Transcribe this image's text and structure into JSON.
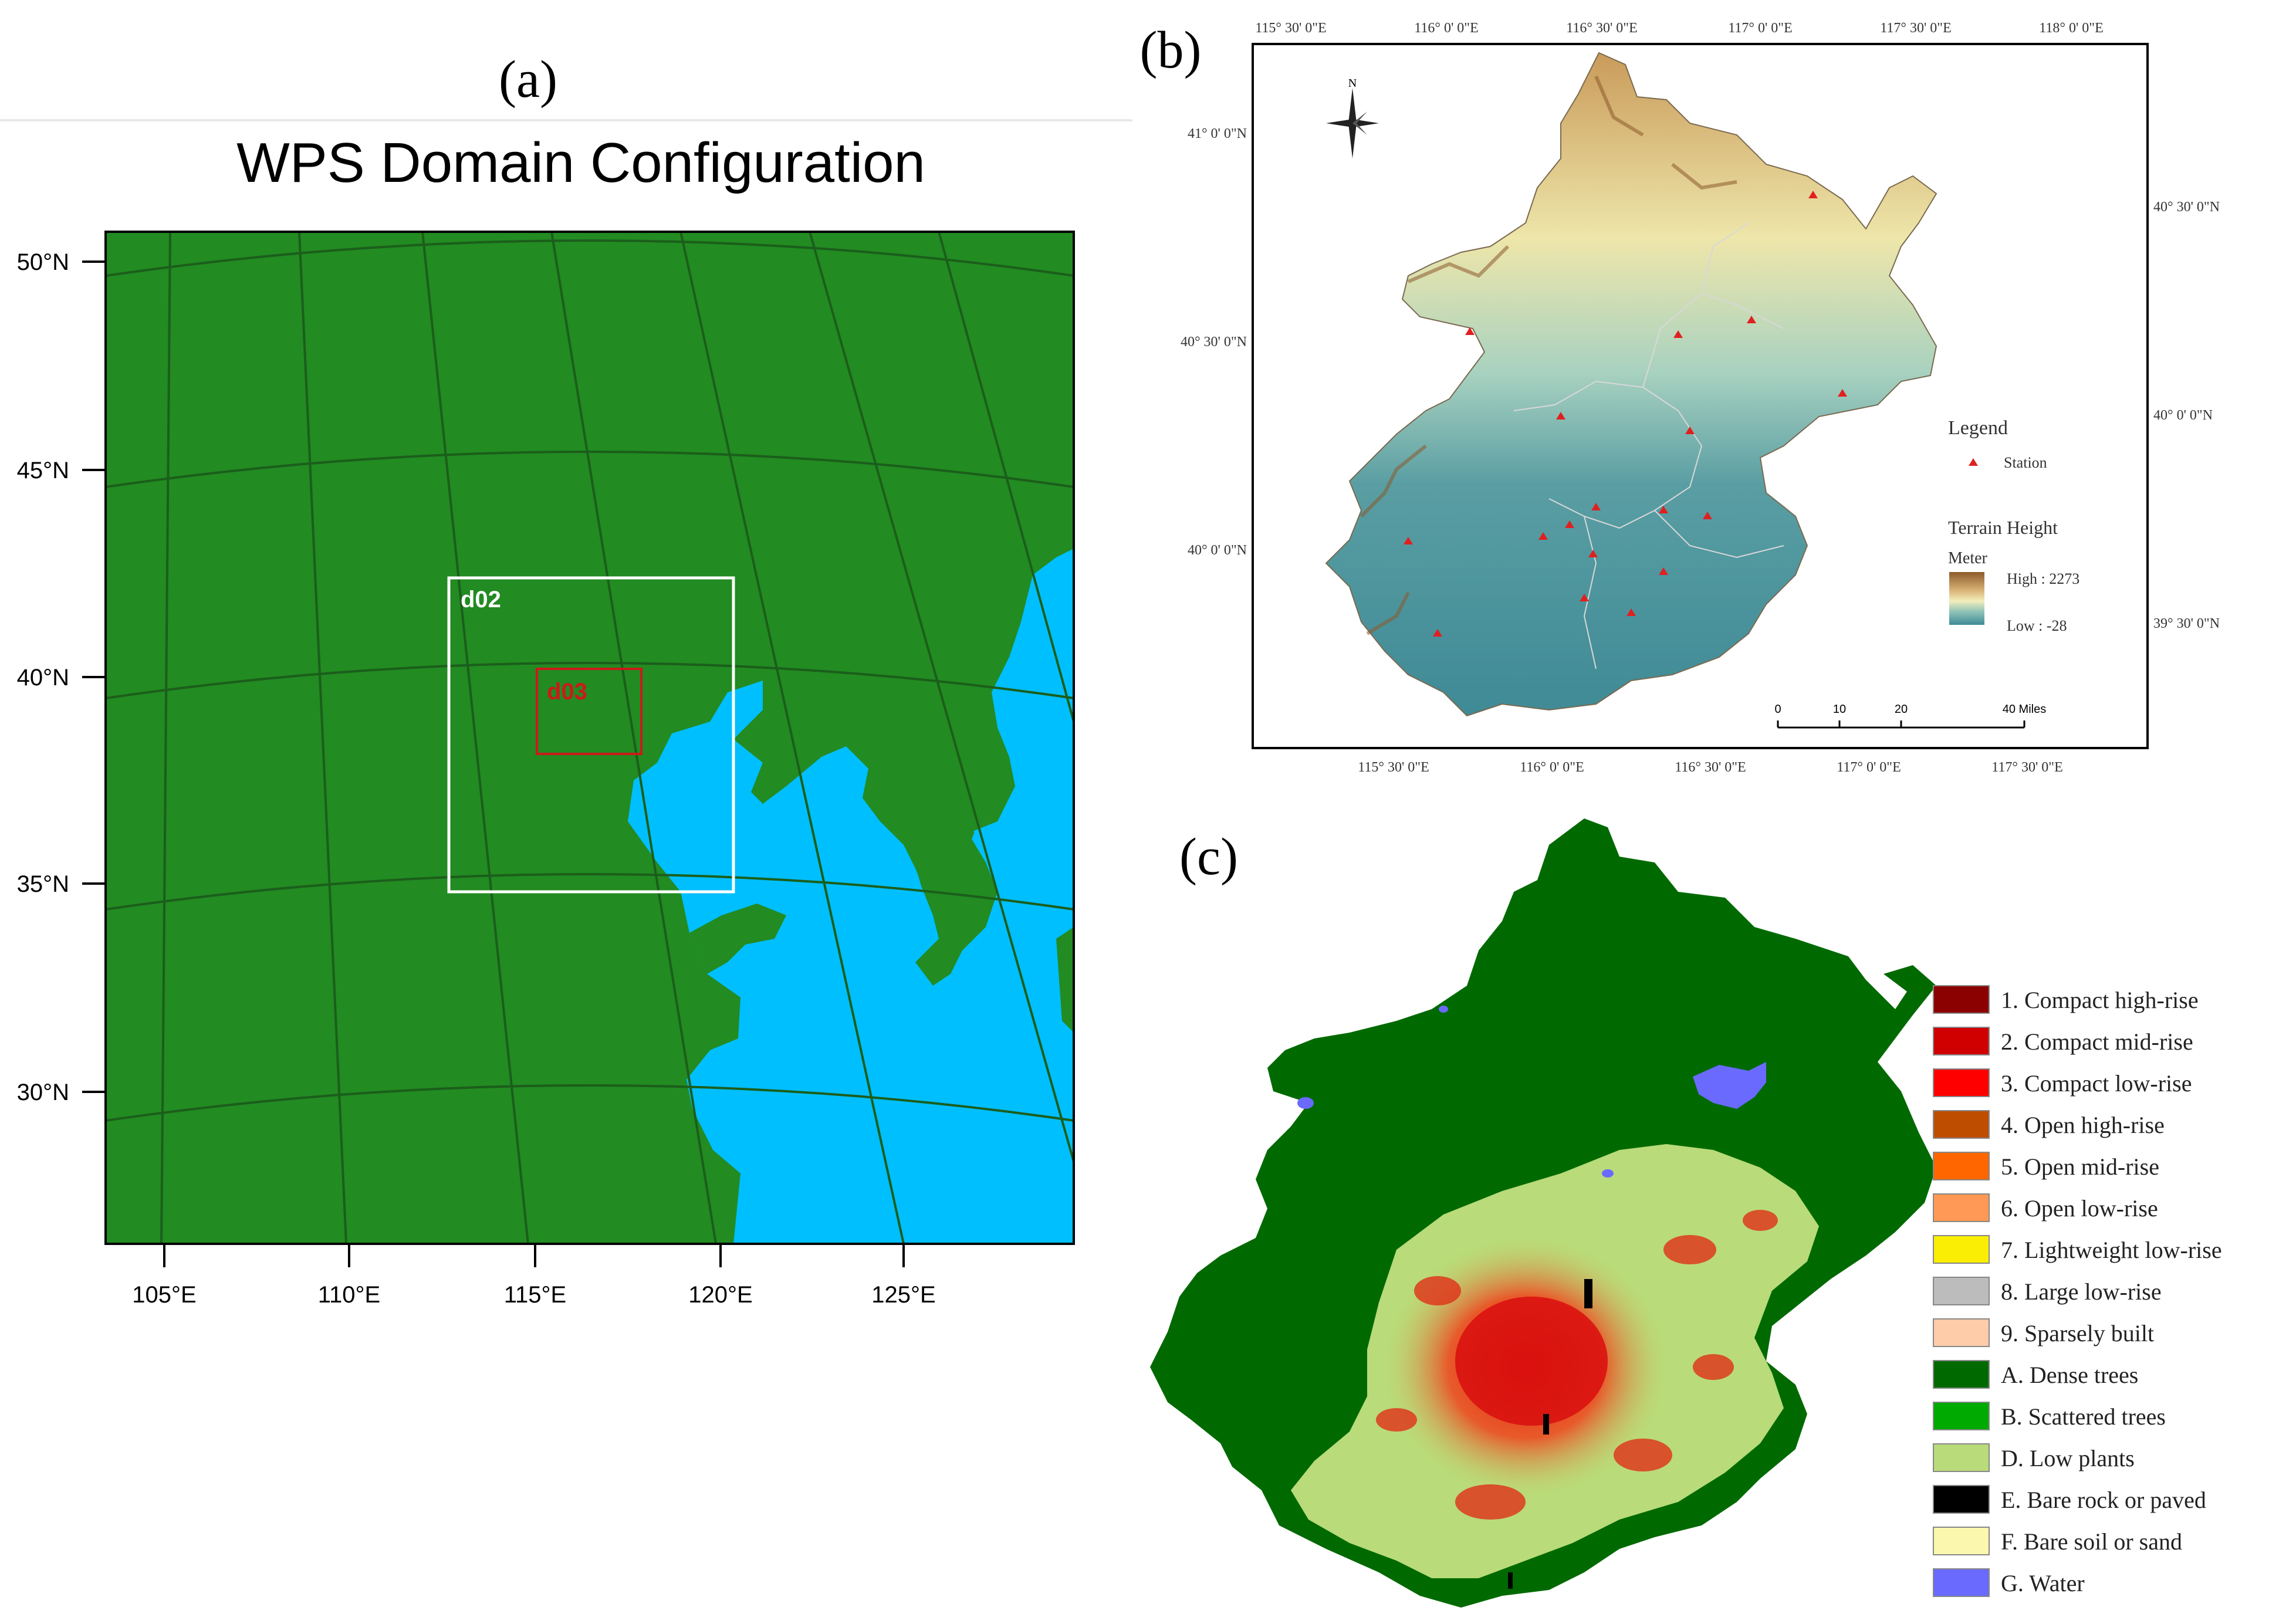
{
  "panel_a": {
    "label": "(a)",
    "title": "WPS Domain Configuration",
    "lat_labels": [
      "50°N",
      "45°N",
      "40°N",
      "35°N",
      "30°N"
    ],
    "lon_labels": [
      "105°E",
      "110°E",
      "115°E",
      "120°E",
      "125°E"
    ],
    "domains": [
      {
        "name": "d02",
        "color": "#ffffff"
      },
      {
        "name": "d03",
        "color": "#cc1a1a"
      }
    ],
    "colors": {
      "land": "#228b22",
      "ocean": "#00bfff"
    }
  },
  "panel_b": {
    "label": "(b)",
    "top_lon_labels": [
      "115° 30' 0\"E",
      "116° 0' 0\"E",
      "116° 30' 0\"E",
      "117° 0' 0\"E",
      "117° 30' 0\"E",
      "118° 0' 0\"E"
    ],
    "bottom_lon_labels": [
      "115° 30' 0\"E",
      "116° 0' 0\"E",
      "116° 30' 0\"E",
      "117° 0' 0\"E",
      "117° 30' 0\"E"
    ],
    "left_lat_labels": [
      "41° 0' 0\"N",
      "40° 30' 0\"N",
      "40° 0' 0\"N"
    ],
    "right_lat_labels": [
      "40° 30' 0\"N",
      "40° 0' 0\"N",
      "39° 30' 0\"N"
    ],
    "north_label": "N",
    "legend": {
      "title": "Legend",
      "station_label": "Station",
      "terrain_title": "Terrain Height",
      "unit": "Meter",
      "high_label": "High : 2273",
      "low_label": "Low : -28"
    },
    "scalebar": {
      "ticks": [
        "0",
        "10",
        "20",
        "40 Miles"
      ]
    },
    "colors": {
      "high": "#8c5a2b",
      "mid": "#f3eebc",
      "low": "#3f8a96",
      "station": "#e02020"
    }
  },
  "panel_c": {
    "label": "(c)",
    "legend": [
      {
        "label": "1. Compact high-rise",
        "color": "#8b0000"
      },
      {
        "label": "2. Compact mid-rise",
        "color": "#d10000"
      },
      {
        "label": "3. Compact low-rise",
        "color": "#ff0000"
      },
      {
        "label": "4. Open high-rise",
        "color": "#bf4d00"
      },
      {
        "label": "5. Open mid-rise",
        "color": "#ff6600"
      },
      {
        "label": "6. Open low-rise",
        "color": "#ff9955"
      },
      {
        "label": "7. Lightweight low-rise",
        "color": "#faee05"
      },
      {
        "label": "8. Large low-rise",
        "color": "#bcbcbc"
      },
      {
        "label": "9. Sparsely built",
        "color": "#ffccaa"
      },
      {
        "label": "A. Dense trees",
        "color": "#006a00"
      },
      {
        "label": "B. Scattered trees",
        "color": "#00aa00"
      },
      {
        "label": "D. Low plants",
        "color": "#b9db79"
      },
      {
        "label": "E. Bare rock or paved",
        "color": "#000000"
      },
      {
        "label": "F. Bare soil or sand",
        "color": "#fbf7ae"
      },
      {
        "label": "G. Water",
        "color": "#6a6aff"
      }
    ]
  }
}
